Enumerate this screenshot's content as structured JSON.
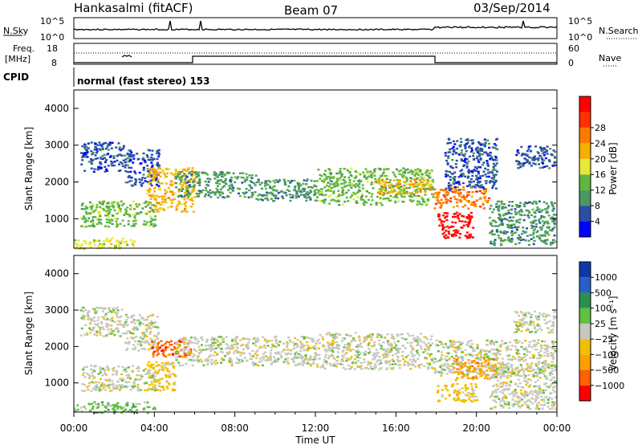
{
  "header": {
    "station": "Hankasalmi (fitACF)",
    "beam": "Beam 07",
    "date": "03/Sep/2014"
  },
  "top_panel": {
    "left_label": "N.Sky",
    "right_label": "N.Search",
    "left_ticks": [
      "10^5",
      "10^0"
    ],
    "right_ticks": [
      "10^5",
      "10^0"
    ]
  },
  "freq_panel": {
    "left_label_1": "Freq.",
    "left_label_2": "[MHz]",
    "right_label": "Nave",
    "left_ticks": [
      "18",
      "8"
    ],
    "right_ticks": [
      "60",
      "0"
    ]
  },
  "cpid": {
    "label": "CPID",
    "text": "normal (fast stereo) 153"
  },
  "colors": {
    "power": [
      "#0000ff",
      "#2a4ea8",
      "#4a9960",
      "#5fb83c",
      "#e8e838",
      "#f5b000",
      "#ff7a00",
      "#ff3000",
      "#ff0000"
    ],
    "velocity": [
      "#ff0000",
      "#ff6000",
      "#ffa000",
      "#f0c000",
      "#c8c8c0",
      "#60c040",
      "#2a9050",
      "#2a5ec8",
      "#1038a8"
    ],
    "ground_scatter": "#b4b4b4"
  },
  "chart_data": [
    {
      "type": "heatmap",
      "name": "power",
      "ylabel": "Slant Range [km]",
      "ylim": [
        200,
        4500
      ],
      "yticks": [
        "1000",
        "2000",
        "3000",
        "4000"
      ],
      "colorbar_label": "Power [dB]",
      "colorbar_ticks": [
        "4",
        "8",
        "12",
        "16",
        "20",
        "24",
        "28"
      ],
      "scatter_regions": [
        {
          "t_start": 0.3,
          "t_end": 2.5,
          "range_low": 2300,
          "range_high": 3100,
          "level": 1
        },
        {
          "t_start": 2.5,
          "t_end": 4.2,
          "range_low": 1900,
          "range_high": 2900,
          "level": 1
        },
        {
          "t_start": 3.6,
          "t_end": 6.0,
          "range_low": 1200,
          "range_high": 2400,
          "level": 5
        },
        {
          "t_start": 5.0,
          "t_end": 9.0,
          "range_low": 1600,
          "range_high": 2300,
          "level": 2
        },
        {
          "t_start": 9.0,
          "t_end": 12.0,
          "range_low": 1500,
          "range_high": 2100,
          "level": 2
        },
        {
          "t_start": 12.0,
          "t_end": 17.8,
          "range_low": 1400,
          "range_high": 2400,
          "level": 3
        },
        {
          "t_start": 15.0,
          "t_end": 17.8,
          "range_low": 1700,
          "range_high": 2100,
          "level": 5
        },
        {
          "t_start": 17.8,
          "t_end": 20.6,
          "range_low": 1300,
          "range_high": 1900,
          "level": 6
        },
        {
          "t_start": 18.0,
          "t_end": 19.8,
          "range_low": 500,
          "range_high": 1200,
          "level": 8
        },
        {
          "t_start": 18.4,
          "t_end": 21.0,
          "range_low": 1800,
          "range_high": 3200,
          "level": 1
        },
        {
          "t_start": 20.6,
          "t_end": 23.9,
          "range_low": 300,
          "range_high": 1500,
          "level": 2
        },
        {
          "t_start": 21.8,
          "t_end": 23.9,
          "range_low": 2400,
          "range_high": 3000,
          "level": 1
        },
        {
          "t_start": 0.0,
          "t_end": 3.0,
          "range_low": 200,
          "range_high": 500,
          "level": 4
        },
        {
          "t_start": 0.3,
          "t_end": 4.0,
          "range_low": 800,
          "range_high": 1500,
          "level": 3
        }
      ]
    },
    {
      "type": "heatmap",
      "name": "velocity",
      "ylabel": "Slant Range [km]",
      "xlabel": "Time UT",
      "ylim": [
        200,
        4500
      ],
      "yticks": [
        "1000",
        "2000",
        "3000",
        "4000"
      ],
      "xticks": [
        "00:00",
        "04:00",
        "08:00",
        "12:00",
        "16:00",
        "20:00",
        "00:00"
      ],
      "xlim_hours": [
        0,
        24
      ],
      "colorbar_label": "Velocity [m s⁻¹]",
      "colorbar_ticks": [
        "1000",
        "500",
        "100",
        "25",
        "−25",
        "−100",
        "−500",
        "−1000"
      ],
      "scatter_regions": [
        {
          "t_start": 0.3,
          "t_end": 2.5,
          "range_low": 2300,
          "range_high": 3100,
          "level": 4
        },
        {
          "t_start": 2.5,
          "t_end": 4.2,
          "range_low": 1900,
          "range_high": 2900,
          "level": 4
        },
        {
          "t_start": 3.8,
          "t_end": 5.8,
          "range_low": 1700,
          "range_high": 2200,
          "level": 1
        },
        {
          "t_start": 3.6,
          "t_end": 5.0,
          "range_low": 800,
          "range_high": 1600,
          "level": 3
        },
        {
          "t_start": 5.0,
          "t_end": 12.0,
          "range_low": 1500,
          "range_high": 2300,
          "level": 4
        },
        {
          "t_start": 12.0,
          "t_end": 17.8,
          "range_low": 1400,
          "range_high": 2400,
          "level": 4
        },
        {
          "t_start": 17.8,
          "t_end": 23.9,
          "range_low": 1200,
          "range_high": 2200,
          "level": 4
        },
        {
          "t_start": 18.8,
          "t_end": 21.0,
          "range_low": 1100,
          "range_high": 1700,
          "level": 2
        },
        {
          "t_start": 18.0,
          "t_end": 20.0,
          "range_low": 500,
          "range_high": 1000,
          "level": 3
        },
        {
          "t_start": 20.6,
          "t_end": 23.9,
          "range_low": 300,
          "range_high": 1500,
          "level": 4
        },
        {
          "t_start": 21.8,
          "t_end": 23.9,
          "range_low": 2400,
          "range_high": 3000,
          "level": 4
        },
        {
          "t_start": 0.0,
          "t_end": 4.0,
          "range_low": 200,
          "range_high": 500,
          "level": 5
        },
        {
          "t_start": 0.3,
          "t_end": 4.0,
          "range_low": 800,
          "range_high": 1500,
          "level": 4
        }
      ]
    }
  ]
}
